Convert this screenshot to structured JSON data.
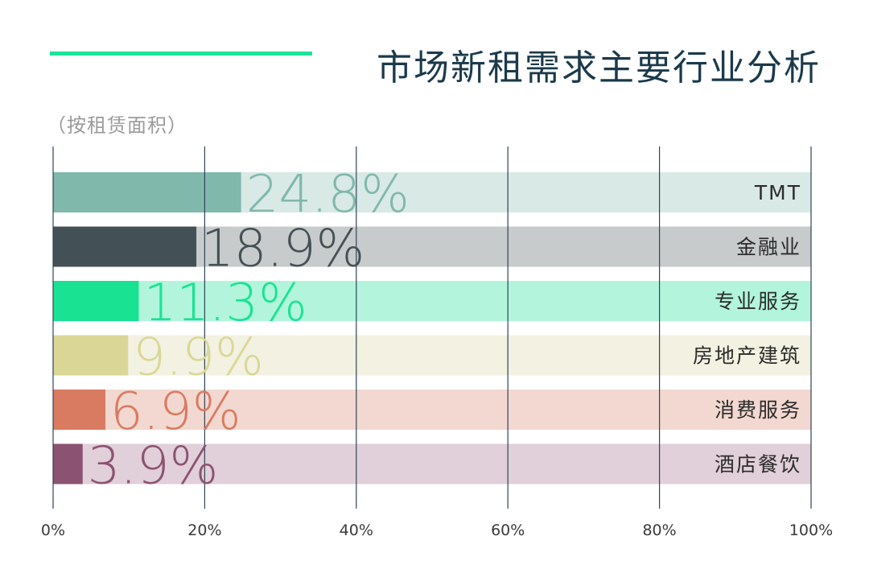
{
  "title": "市场新租需求主要行业分析",
  "subtitle": "（按租赁面积）",
  "colors": {
    "title_line": "#1de49b",
    "title_text": "#1b3a4b",
    "grid": "#2f4457",
    "tick_text": "#3a3a3a"
  },
  "chart_data": {
    "type": "bar",
    "orientation": "horizontal",
    "categories": [
      "TMT",
      "金融业",
      "专业服务",
      "房地产建筑",
      "消费服务",
      "酒店餐饮"
    ],
    "values": [
      24.8,
      18.9,
      11.3,
      9.9,
      6.9,
      3.9
    ],
    "value_labels": [
      "24.8%",
      "18.9%",
      "11.3%",
      "9.9%",
      "6.9%",
      "3.9%"
    ],
    "bar_colors": [
      "#80b8ab",
      "#435156",
      "#19e392",
      "#dad796",
      "#d97b61",
      "#8c5271"
    ],
    "track_colors": [
      "#d9e9e5",
      "#c8cbcb",
      "#b2f5dc",
      "#f2f1e2",
      "#f2d8d0",
      "#e1cfd9"
    ],
    "xlim": [
      0,
      100
    ],
    "xticks": [
      0,
      20,
      40,
      60,
      80,
      100
    ],
    "xtick_labels": [
      "0%",
      "20%",
      "40%",
      "60%",
      "80%",
      "100%"
    ],
    "grid": true,
    "legend": "none"
  }
}
